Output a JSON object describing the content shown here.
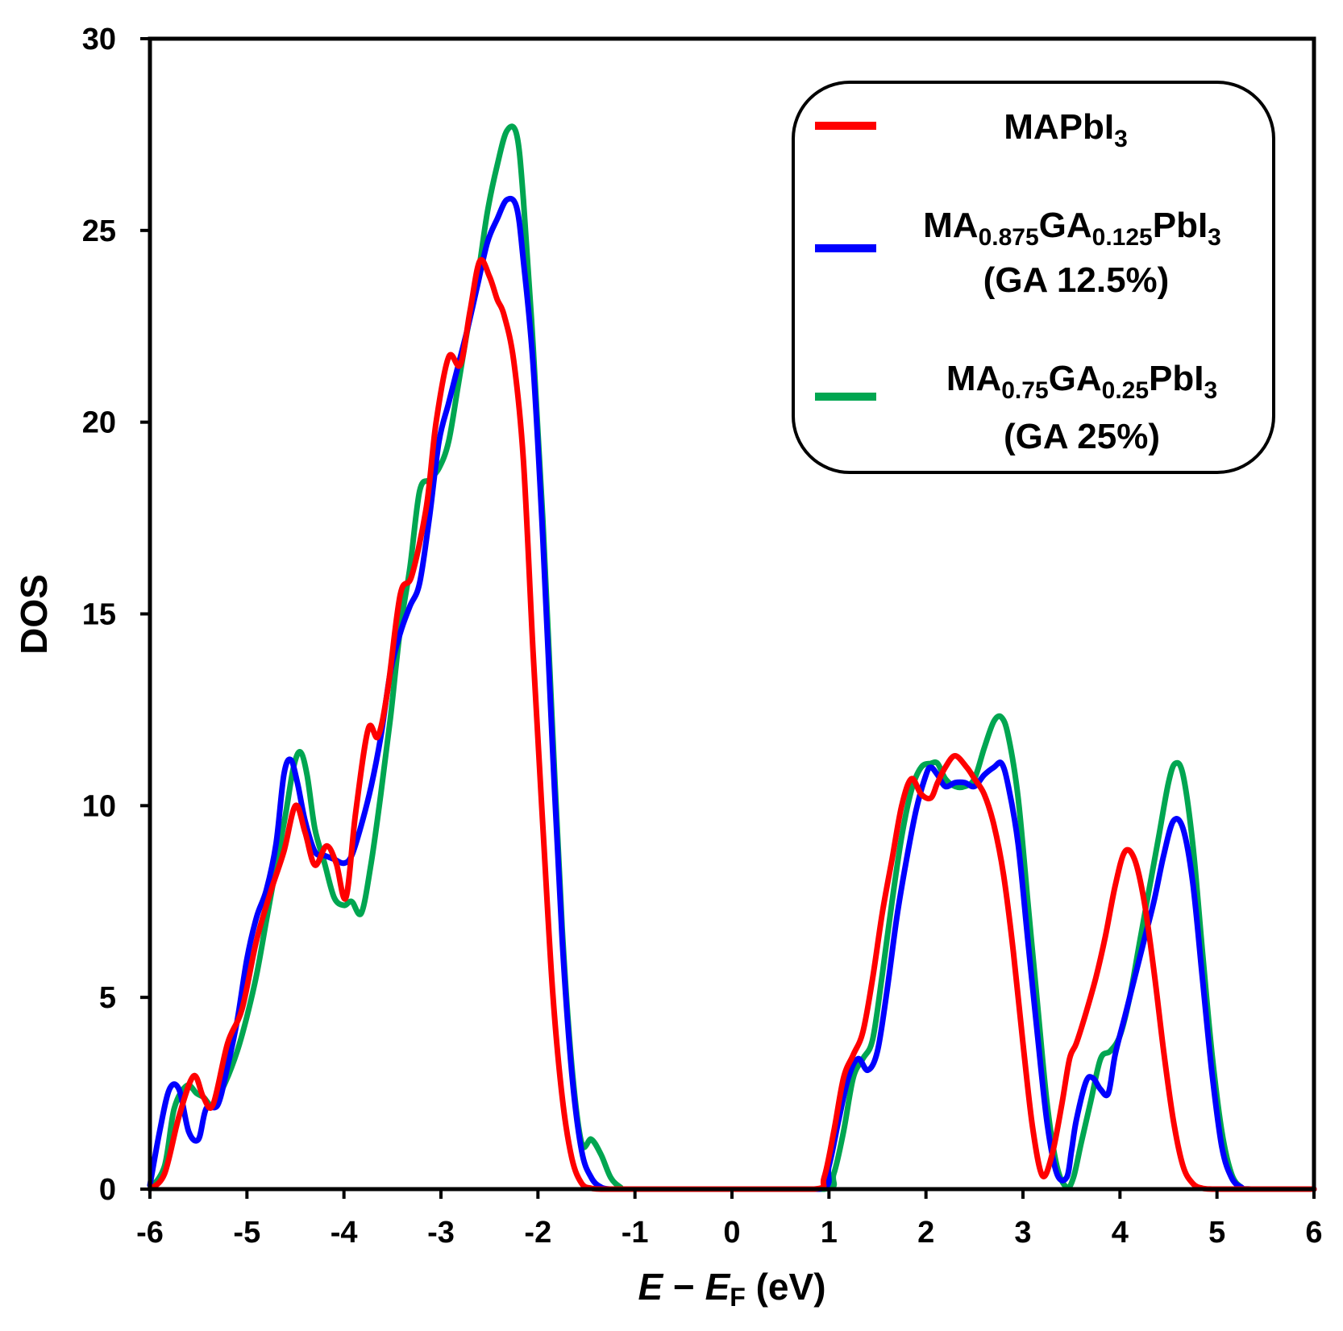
{
  "chart_data": {
    "type": "line",
    "title": "",
    "xlabel": {
      "main": "E",
      "minus": " − ",
      "ef_main": "E",
      "ef_sub": "F",
      "unit": " (eV)"
    },
    "ylabel": "DOS",
    "xlim": [
      -6,
      6
    ],
    "ylim": [
      0,
      30
    ],
    "xticks": [
      "-6",
      "-5",
      "-4",
      "-3",
      "-2",
      "-1",
      "0",
      "1",
      "2",
      "3",
      "4",
      "5",
      "6"
    ],
    "yticks": [
      "0",
      "5",
      "10",
      "15",
      "20",
      "25",
      "30"
    ],
    "legend_position": "top-right",
    "legend": [
      {
        "line1": [
          "MAPbI",
          "3"
        ],
        "line2": ""
      },
      {
        "line1": [
          "MA",
          "0.875",
          "GA",
          "0.125",
          "PbI",
          "3"
        ],
        "line2": "(GA 12.5%)"
      },
      {
        "line1": [
          "MA",
          "0.75",
          "GA",
          "0.25",
          "PbI",
          "3"
        ],
        "line2": "(GA 25%)"
      }
    ],
    "series": [
      {
        "name": "MAPbI3",
        "color": "#ff0000",
        "x": [
          -6.0,
          -5.85,
          -5.7,
          -5.55,
          -5.45,
          -5.35,
          -5.2,
          -5.05,
          -4.9,
          -4.75,
          -4.62,
          -4.5,
          -4.4,
          -4.3,
          -4.18,
          -4.08,
          -3.98,
          -3.88,
          -3.75,
          -3.65,
          -3.55,
          -3.42,
          -3.3,
          -3.15,
          -3.05,
          -2.92,
          -2.8,
          -2.7,
          -2.6,
          -2.5,
          -2.42,
          -2.35,
          -2.25,
          -2.15,
          -2.05,
          -1.95,
          -1.85,
          -1.75,
          -1.65,
          -1.55,
          -1.45,
          -1.35,
          -1.25,
          -1.15,
          -1.05,
          0.0,
          0.85,
          0.95,
          1.05,
          1.15,
          1.25,
          1.35,
          1.45,
          1.55,
          1.65,
          1.75,
          1.85,
          1.95,
          2.05,
          2.12,
          2.2,
          2.3,
          2.42,
          2.5,
          2.6,
          2.7,
          2.8,
          2.9,
          3.0,
          3.1,
          3.2,
          3.3,
          3.4,
          3.48,
          3.55,
          3.65,
          3.75,
          3.85,
          3.95,
          4.05,
          4.15,
          4.25,
          4.35,
          4.45,
          4.55,
          4.65,
          4.75,
          4.85,
          4.95,
          5.05,
          5.15,
          5.25,
          5.35,
          5.45,
          5.55,
          6.0
        ],
        "y": [
          0,
          0.4,
          1.9,
          2.95,
          2.4,
          2.2,
          3.8,
          4.7,
          6.5,
          7.8,
          8.8,
          10.0,
          9.3,
          8.45,
          8.95,
          8.5,
          7.6,
          9.8,
          12.0,
          11.8,
          13.0,
          15.5,
          16.0,
          17.8,
          20.0,
          21.7,
          21.5,
          22.9,
          24.2,
          23.8,
          23.2,
          22.8,
          21.6,
          19.0,
          14.0,
          9.5,
          5.2,
          2.4,
          0.8,
          0.15,
          0.02,
          0,
          0,
          0,
          0,
          0,
          0,
          0.3,
          1.5,
          2.9,
          3.5,
          4.1,
          5.5,
          7.2,
          8.6,
          10.0,
          10.7,
          10.3,
          10.2,
          10.6,
          11.0,
          11.3,
          11.0,
          10.7,
          10.3,
          9.5,
          8.2,
          6.2,
          3.8,
          1.6,
          0.35,
          0.9,
          2.2,
          3.4,
          3.8,
          4.6,
          5.5,
          6.6,
          7.9,
          8.8,
          8.6,
          7.5,
          5.7,
          3.6,
          1.8,
          0.6,
          0.15,
          0.02,
          0,
          0,
          0,
          0,
          0,
          0,
          0,
          0
        ]
      },
      {
        "name": "MA0.875GA0.125PbI3",
        "color": "#0000ff",
        "x": [
          -6.0,
          -5.9,
          -5.8,
          -5.7,
          -5.6,
          -5.5,
          -5.42,
          -5.3,
          -5.2,
          -5.1,
          -5.0,
          -4.9,
          -4.8,
          -4.7,
          -4.62,
          -4.55,
          -4.48,
          -4.4,
          -4.3,
          -4.2,
          -4.1,
          -4.0,
          -3.92,
          -3.82,
          -3.72,
          -3.62,
          -3.52,
          -3.42,
          -3.32,
          -3.22,
          -3.12,
          -3.02,
          -2.92,
          -2.82,
          -2.72,
          -2.62,
          -2.52,
          -2.42,
          -2.32,
          -2.22,
          -2.15,
          -2.05,
          -1.95,
          -1.85,
          -1.75,
          -1.65,
          -1.55,
          -1.45,
          -1.35,
          -1.25,
          -1.15,
          0.0,
          0.9,
          1.0,
          1.1,
          1.2,
          1.3,
          1.4,
          1.5,
          1.6,
          1.7,
          1.8,
          1.9,
          2.0,
          2.05,
          2.12,
          2.2,
          2.3,
          2.4,
          2.5,
          2.6,
          2.7,
          2.78,
          2.85,
          2.95,
          3.05,
          3.15,
          3.25,
          3.35,
          3.45,
          3.5,
          3.55,
          3.65,
          3.72,
          3.8,
          3.88,
          3.95,
          4.05,
          4.15,
          4.25,
          4.35,
          4.45,
          4.55,
          4.65,
          4.75,
          4.85,
          4.95,
          5.05,
          5.15,
          5.25,
          5.35,
          6.0
        ],
        "y": [
          0.1,
          1.5,
          2.6,
          2.6,
          1.5,
          1.3,
          2.1,
          2.2,
          3.2,
          4.4,
          6.0,
          7.1,
          7.8,
          9.0,
          10.8,
          11.2,
          10.6,
          9.6,
          8.8,
          8.7,
          8.6,
          8.5,
          8.7,
          9.5,
          10.5,
          11.8,
          13.5,
          14.5,
          15.2,
          15.8,
          17.5,
          19.5,
          20.5,
          21.5,
          22.5,
          23.6,
          24.7,
          25.3,
          25.8,
          25.6,
          24.2,
          21.5,
          17.0,
          11.5,
          6.5,
          3.0,
          1.0,
          0.3,
          0.05,
          0,
          0,
          0,
          0,
          0.6,
          1.8,
          2.9,
          3.4,
          3.1,
          3.6,
          5.2,
          7.1,
          8.6,
          9.9,
          10.8,
          11.0,
          10.8,
          10.5,
          10.6,
          10.6,
          10.5,
          10.8,
          11.0,
          11.1,
          10.5,
          9.0,
          6.5,
          4.0,
          1.7,
          0.4,
          0.3,
          1.0,
          1.8,
          2.8,
          2.9,
          2.6,
          2.5,
          3.5,
          4.5,
          5.5,
          6.5,
          7.5,
          8.7,
          9.6,
          9.4,
          8.0,
          5.5,
          3.0,
          1.1,
          0.3,
          0.05,
          0,
          0
        ]
      },
      {
        "name": "MA0.75GA0.25PbI3",
        "color": "#00a651",
        "x": [
          -6.0,
          -5.85,
          -5.75,
          -5.62,
          -5.52,
          -5.45,
          -5.35,
          -5.22,
          -5.1,
          -5.0,
          -4.9,
          -4.8,
          -4.7,
          -4.6,
          -4.52,
          -4.45,
          -4.38,
          -4.3,
          -4.2,
          -4.1,
          -4.0,
          -3.92,
          -3.82,
          -3.72,
          -3.62,
          -3.52,
          -3.42,
          -3.32,
          -3.22,
          -3.12,
          -3.02,
          -2.92,
          -2.82,
          -2.72,
          -2.62,
          -2.52,
          -2.42,
          -2.32,
          -2.22,
          -2.15,
          -2.05,
          -1.95,
          -1.85,
          -1.75,
          -1.65,
          -1.55,
          -1.45,
          -1.35,
          -1.25,
          -1.15,
          -1.08,
          0.0,
          0.95,
          1.05,
          1.15,
          1.25,
          1.35,
          1.45,
          1.55,
          1.65,
          1.75,
          1.85,
          1.95,
          2.05,
          2.12,
          2.2,
          2.3,
          2.4,
          2.5,
          2.6,
          2.7,
          2.78,
          2.85,
          2.95,
          3.05,
          3.15,
          3.25,
          3.35,
          3.45,
          3.52,
          3.6,
          3.7,
          3.8,
          3.9,
          4.0,
          4.1,
          4.2,
          4.3,
          4.4,
          4.5,
          4.57,
          4.65,
          4.75,
          4.85,
          4.95,
          5.05,
          5.15,
          5.25,
          5.35,
          6.0
        ],
        "y": [
          0,
          0.6,
          2.1,
          2.7,
          2.5,
          2.4,
          2.2,
          2.8,
          3.6,
          4.5,
          5.6,
          7.0,
          8.4,
          9.8,
          11.0,
          11.4,
          10.8,
          9.4,
          8.5,
          7.6,
          7.4,
          7.5,
          7.2,
          8.5,
          10.3,
          12.3,
          14.6,
          16.2,
          18.2,
          18.5,
          18.8,
          19.5,
          21.0,
          22.5,
          23.8,
          25.5,
          26.7,
          27.6,
          27.5,
          25.8,
          22.0,
          17.5,
          12.0,
          6.8,
          3.2,
          1.2,
          1.3,
          0.9,
          0.3,
          0.05,
          0,
          0,
          0,
          0.4,
          1.5,
          2.9,
          3.4,
          3.9,
          5.6,
          7.5,
          9.2,
          10.4,
          11.0,
          11.1,
          11.1,
          10.7,
          10.5,
          10.5,
          10.7,
          11.5,
          12.2,
          12.3,
          11.8,
          10.2,
          7.5,
          4.8,
          2.2,
          0.6,
          0.05,
          0.3,
          1.2,
          2.3,
          3.4,
          3.6,
          4.0,
          5.0,
          6.4,
          7.8,
          9.2,
          10.6,
          11.1,
          10.8,
          9.0,
          6.2,
          3.5,
          1.5,
          0.4,
          0.05,
          0,
          0
        ]
      }
    ]
  }
}
